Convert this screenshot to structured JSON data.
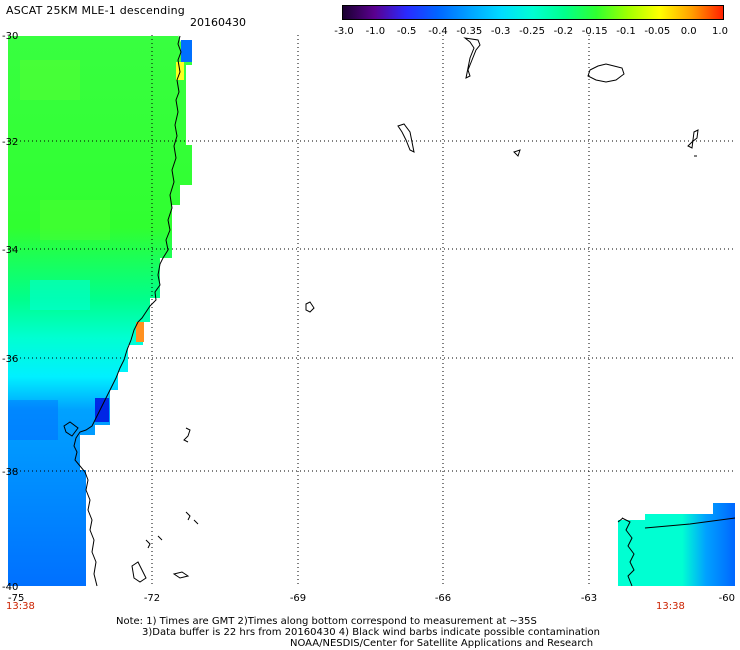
{
  "title": "ASCAT 25KM MLE-1 descending",
  "date": "20160430",
  "colorbar": {
    "labels": [
      "-3.0",
      "-1.0",
      "-0.5",
      "-0.4",
      "-0.35",
      "-0.3",
      "-0.25",
      "-0.2",
      "-0.15",
      "-0.1",
      "-0.05",
      "0.0",
      "1.0"
    ],
    "colors": [
      "#1a0030",
      "#5a008f",
      "#2a2aff",
      "#0066ff",
      "#00a2ff",
      "#00dcff",
      "#00ffd2",
      "#00ff8c",
      "#30ff30",
      "#a0ff00",
      "#ffff00",
      "#ffa000",
      "#ff2000"
    ]
  },
  "axes": {
    "lat_labels": [
      "-30",
      "-32",
      "-34",
      "-36",
      "-38",
      "-40"
    ],
    "lon_labels": [
      "-75",
      "-72",
      "-69",
      "-66",
      "-63",
      "-60"
    ]
  },
  "times": {
    "left": "13:38",
    "right": "13:38"
  },
  "notes": [
    "Note: 1) Times are GMT 2)Times along bottom correspond to measurement at ~35S",
    "3)Data buffer is 22 hrs from 20160430 4) Black wind barbs indicate possible contamination",
    "NOAA/NESDIS/Center for Satellite Applications and Research"
  ],
  "colors": {
    "grid": "#000000",
    "coast": "#000000",
    "time_label": "#cc2200",
    "swath_green": "#30ff30",
    "swath_cyan": "#00ffd2",
    "swath_blue": "#0066ff"
  }
}
